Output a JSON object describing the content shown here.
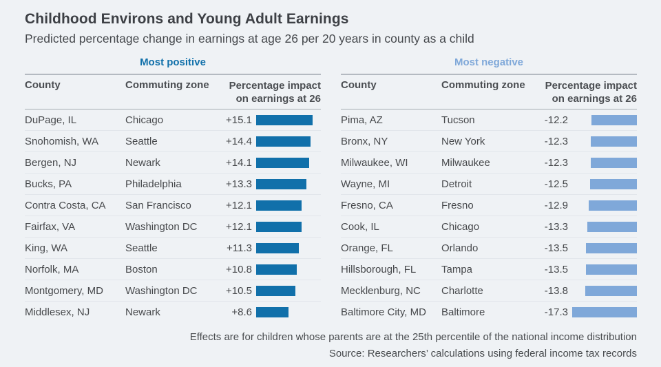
{
  "title": "Childhood Environs and Young Adult Earnings",
  "subtitle": "Predicted percentage change in earnings at age 26 per 20 years in county as a child",
  "columns": {
    "county": "County",
    "zone": "Commuting zone",
    "impact_line1": "Percentage impact",
    "impact_line2": "on earnings at 26"
  },
  "colors": {
    "positive_bar": "#1170aa",
    "negative_bar": "#7fa8d9",
    "positive_label": "#1170aa",
    "negative_label": "#7fa8d9"
  },
  "panels": [
    {
      "label": "Most positive",
      "rows": [
        {
          "county": "DuPage, IL",
          "zone": "Chicago",
          "display": "+15.1",
          "value": 15.1
        },
        {
          "county": "Snohomish, WA",
          "zone": "Seattle",
          "display": "+14.4",
          "value": 14.4
        },
        {
          "county": "Bergen, NJ",
          "zone": "Newark",
          "display": "+14.1",
          "value": 14.1
        },
        {
          "county": "Bucks, PA",
          "zone": "Philadelphia",
          "display": "+13.3",
          "value": 13.3
        },
        {
          "county": "Contra Costa, CA",
          "zone": "San Francisco",
          "display": "+12.1",
          "value": 12.1
        },
        {
          "county": "Fairfax, VA",
          "zone": "Washington DC",
          "display": "+12.1",
          "value": 12.1
        },
        {
          "county": "King, WA",
          "zone": "Seattle",
          "display": "+11.3",
          "value": 11.3
        },
        {
          "county": "Norfolk, MA",
          "zone": "Boston",
          "display": "+10.8",
          "value": 10.8
        },
        {
          "county": "Montgomery, MD",
          "zone": "Washington DC",
          "display": "+10.5",
          "value": 10.5
        },
        {
          "county": "Middlesex, NJ",
          "zone": "Newark",
          "display": "+8.6",
          "value": 8.6
        }
      ]
    },
    {
      "label": "Most negative",
      "rows": [
        {
          "county": "Pima, AZ",
          "zone": "Tucson",
          "display": "-12.2",
          "value": -12.2
        },
        {
          "county": "Bronx, NY",
          "zone": "New York",
          "display": "-12.3",
          "value": -12.3
        },
        {
          "county": "Milwaukee, WI",
          "zone": "Milwaukee",
          "display": "-12.3",
          "value": -12.3
        },
        {
          "county": "Wayne, MI",
          "zone": "Detroit",
          "display": "-12.5",
          "value": -12.5
        },
        {
          "county": "Fresno, CA",
          "zone": "Fresno",
          "display": "-12.9",
          "value": -12.9
        },
        {
          "county": "Cook, IL",
          "zone": "Chicago",
          "display": "-13.3",
          "value": -13.3
        },
        {
          "county": "Orange, FL",
          "zone": "Orlando",
          "display": "-13.5",
          "value": -13.5
        },
        {
          "county": "Hillsborough, FL",
          "zone": "Tampa",
          "display": "-13.5",
          "value": -13.5
        },
        {
          "county": "Mecklenburg, NC",
          "zone": "Charlotte",
          "display": "-13.8",
          "value": -13.8
        },
        {
          "county": "Baltimore City, MD",
          "zone": "Baltimore",
          "display": "-17.3",
          "value": -17.3
        }
      ]
    }
  ],
  "footnotes": [
    "Effects are for children whose parents are at the 25th percentile of the national income distribution",
    "Source: Researchers’ calculations using federal income tax records"
  ],
  "chart_data": {
    "type": "bar",
    "title": "Childhood Environs and Young Adult Earnings",
    "subtitle": "Predicted percentage change in earnings at age 26 per 20 years in county as a child",
    "unit": "percentage points",
    "legend_position": "none",
    "grid": false,
    "series": [
      {
        "name": "Most positive",
        "categories": [
          "DuPage, IL",
          "Snohomish, WA",
          "Bergen, NJ",
          "Bucks, PA",
          "Contra Costa, CA",
          "Fairfax, VA",
          "King, WA",
          "Norfolk, MA",
          "Montgomery, MD",
          "Middlesex, NJ"
        ],
        "commuting_zones": [
          "Chicago",
          "Seattle",
          "Newark",
          "Philadelphia",
          "San Francisco",
          "Washington DC",
          "Seattle",
          "Boston",
          "Washington DC",
          "Newark"
        ],
        "values": [
          15.1,
          14.4,
          14.1,
          13.3,
          12.1,
          12.1,
          11.3,
          10.8,
          10.5,
          8.6
        ],
        "color": "#1170aa"
      },
      {
        "name": "Most negative",
        "categories": [
          "Pima, AZ",
          "Bronx, NY",
          "Milwaukee, WI",
          "Wayne, MI",
          "Fresno, CA",
          "Cook, IL",
          "Orange, FL",
          "Hillsborough, FL",
          "Mecklenburg, NC",
          "Baltimore City, MD"
        ],
        "commuting_zones": [
          "Tucson",
          "New York",
          "Milwaukee",
          "Detroit",
          "Fresno",
          "Chicago",
          "Orlando",
          "Tampa",
          "Charlotte",
          "Baltimore"
        ],
        "values": [
          -12.2,
          -12.3,
          -12.3,
          -12.5,
          -12.9,
          -13.3,
          -13.5,
          -13.5,
          -13.8,
          -17.3
        ],
        "color": "#7fa8d9"
      }
    ],
    "footnotes": [
      "Effects are for children whose parents are at the 25th percentile of the national income distribution",
      "Source: Researchers’ calculations using federal income tax records"
    ]
  }
}
